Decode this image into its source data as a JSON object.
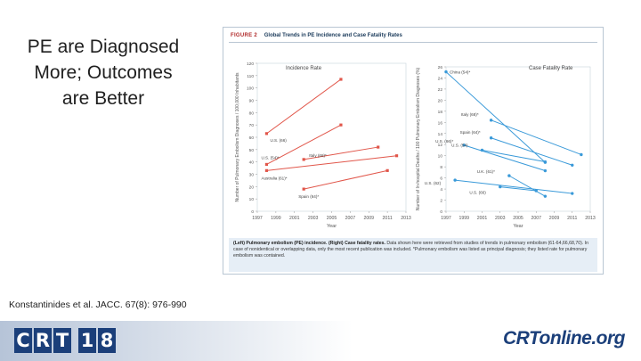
{
  "slide": {
    "title_lines": [
      "PE are Diagnosed",
      "More; Outcomes",
      "are Better"
    ],
    "citation": "Konstantinides et al. JACC. 67(8): 976-990"
  },
  "figure": {
    "label": "FIGURE 2",
    "heading": "Global Trends in PE Incidence and Case Fatality Rates",
    "caption_lead": "(Left) Pulmonary embolism (PE) incidence. (Right) Case fatality rates.",
    "caption_rest": "Data shown here were retrieved from studies of trends in pulmonary embolism (61-64,66,68,70). In case of nonidentical or overlapping data, only the most recent publication was included. *Pulmonary embolism was listed as principal diagnosis; they listed rate for pulmonary embolism was contained."
  },
  "chart_data": [
    {
      "type": "line",
      "title": "Incidence Rate",
      "xlabel": "Year",
      "ylabel": "Number of Pulmonary Embolism Diagnoses / 100,000 Inhabitants",
      "xlim": [
        1997,
        2013
      ],
      "ylim": [
        0,
        120
      ],
      "x_ticks": [
        "1997",
        "1999",
        "2001",
        "2003",
        "2005",
        "2007",
        "2009",
        "2011",
        "2013"
      ],
      "y_ticks": [
        "0",
        "10",
        "20",
        "30",
        "40",
        "50",
        "60",
        "70",
        "80",
        "90",
        "100",
        "110",
        "120"
      ],
      "color": "#e1564a",
      "series": [
        {
          "name": "U.S. (66)",
          "points": [
            [
              1998,
              63
            ],
            [
              2006,
              107
            ]
          ]
        },
        {
          "name": "U.S. (54)*",
          "points": [
            [
              1998,
              38
            ],
            [
              2006,
              70
            ]
          ]
        },
        {
          "name": "Italy (68)*",
          "points": [
            [
              2002,
              42
            ],
            [
              2010,
              52
            ]
          ]
        },
        {
          "name": "Australia (61)*",
          "points": [
            [
              1998,
              33
            ],
            [
              2012,
              45
            ]
          ]
        },
        {
          "name": "Spain (64)*",
          "points": [
            [
              2002,
              18
            ],
            [
              2011,
              33
            ]
          ]
        }
      ]
    },
    {
      "type": "line",
      "title": "Case Fatality Rate",
      "xlabel": "Year",
      "ylabel": "Number of In-hospital Deaths / 100 Pulmonary Embolism Diagnoses (%)",
      "xlim": [
        1997,
        2013
      ],
      "ylim": [
        0,
        26
      ],
      "x_ticks": [
        "1997",
        "1999",
        "2001",
        "2003",
        "2005",
        "2007",
        "2009",
        "2011",
        "2013"
      ],
      "y_ticks": [
        "0",
        "2",
        "4",
        "6",
        "8",
        "10",
        "12",
        "14",
        "16",
        "18",
        "20",
        "22",
        "24",
        "26"
      ],
      "color": "#3a9ad9",
      "series": [
        {
          "name": "China (54)*",
          "points": [
            [
              1997,
              25.1
            ],
            [
              2008,
              8.8
            ]
          ]
        },
        {
          "name": "Italy (68)*",
          "points": [
            [
              2002,
              16.4
            ],
            [
              2012,
              10.2
            ]
          ]
        },
        {
          "name": "Spain (64)*",
          "points": [
            [
              2002,
              13.2
            ],
            [
              2011,
              8.3
            ]
          ]
        },
        {
          "name": "U.S. (66)*",
          "points": [
            [
              1999,
              11.9
            ],
            [
              2008,
              7.3
            ]
          ]
        },
        {
          "name": "U.S. (54)",
          "points": [
            [
              2001,
              11.0
            ],
            [
              2008,
              8.9
            ]
          ]
        },
        {
          "name": "U.K. (61)*",
          "points": [
            [
              2004,
              6.4
            ],
            [
              2008,
              2.7
            ]
          ]
        },
        {
          "name": "U.S. (62)",
          "points": [
            [
              1998,
              5.6
            ],
            [
              2011,
              3.2
            ]
          ]
        },
        {
          "name": "U.S. (66)",
          "points": [
            [
              2003,
              4.4
            ],
            [
              2007,
              3.7
            ]
          ]
        }
      ]
    }
  ],
  "footer": {
    "logo_letters": [
      "C",
      "R",
      "T",
      "1",
      "8"
    ],
    "site_logo": "CRTonline.org"
  }
}
